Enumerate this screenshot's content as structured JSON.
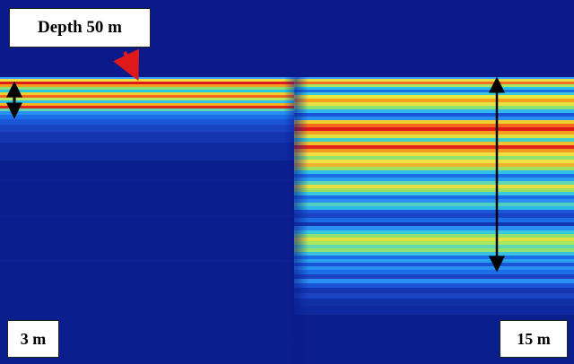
{
  "labels": {
    "depth": "Depth 50 m",
    "left_thickness": "3 m",
    "right_thickness": "15 m"
  },
  "colors": {
    "background": "#0a1a8a",
    "pointer_arrow": "#e01a1a",
    "scale_arrow": "#000000"
  }
}
